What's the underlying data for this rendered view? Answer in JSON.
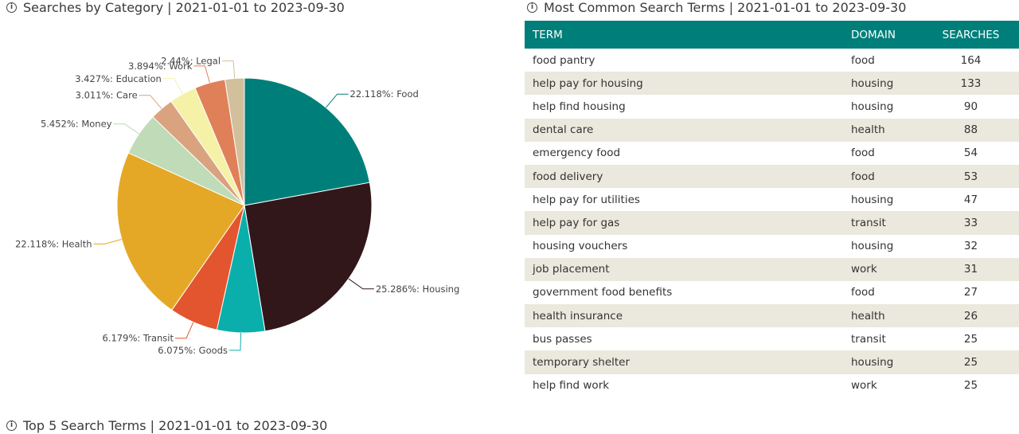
{
  "pie_panel": {
    "title": "Searches by Category | 2021-01-01 to 2023-09-30"
  },
  "table_panel": {
    "title": "Most Common Search Terms | 2021-01-01 to 2023-09-30",
    "columns": [
      "TERM",
      "DOMAIN",
      "SEARCHES"
    ],
    "rows": [
      {
        "term": "food pantry",
        "domain": "food",
        "searches": "164"
      },
      {
        "term": "help pay for housing",
        "domain": "housing",
        "searches": "133"
      },
      {
        "term": "help find housing",
        "domain": "housing",
        "searches": "90"
      },
      {
        "term": "dental care",
        "domain": "health",
        "searches": "88"
      },
      {
        "term": "emergency food",
        "domain": "food",
        "searches": "54"
      },
      {
        "term": "food delivery",
        "domain": "food",
        "searches": "53"
      },
      {
        "term": "help pay for utilities",
        "domain": "housing",
        "searches": "47"
      },
      {
        "term": "help pay for gas",
        "domain": "transit",
        "searches": "33"
      },
      {
        "term": "housing vouchers",
        "domain": "housing",
        "searches": "32"
      },
      {
        "term": "job placement",
        "domain": "work",
        "searches": "31"
      },
      {
        "term": "government food benefits",
        "domain": "food",
        "searches": "27"
      },
      {
        "term": "health insurance",
        "domain": "health",
        "searches": "26"
      },
      {
        "term": "bus passes",
        "domain": "transit",
        "searches": "25"
      },
      {
        "term": "temporary shelter",
        "domain": "housing",
        "searches": "25"
      },
      {
        "term": "help find work",
        "domain": "work",
        "searches": "25"
      }
    ]
  },
  "bottom_panel": {
    "title": "Top 5 Search Terms | 2021-01-01 to 2023-09-30"
  },
  "colors": {
    "header_bg": "#007f7a",
    "alt_row": "#ebe8de"
  },
  "icons": {
    "info": "info-circle-icon"
  },
  "chart_data": {
    "type": "pie",
    "slices": [
      {
        "name": "Food",
        "value": 22.118,
        "label": "22.118%: Food",
        "color": "#007f7a"
      },
      {
        "name": "Housing",
        "value": 25.286,
        "label": "25.286%: Housing",
        "color": "#32171a"
      },
      {
        "name": "Goods",
        "value": 6.075,
        "label": "6.075%: Goods",
        "color": "#0aafab"
      },
      {
        "name": "Transit",
        "value": 6.179,
        "label": "6.179%: Transit",
        "color": "#e3552e"
      },
      {
        "name": "Health",
        "value": 22.118,
        "label": "22.118%: Health",
        "color": "#e5a826"
      },
      {
        "name": "Money",
        "value": 5.452,
        "label": "5.452%: Money",
        "color": "#bfdbb7"
      },
      {
        "name": "Care",
        "value": 3.011,
        "label": "3.011%: Care",
        "color": "#d9a37f"
      },
      {
        "name": "Education",
        "value": 3.427,
        "label": "3.427%: Education",
        "color": "#f5f1a6"
      },
      {
        "name": "Work",
        "value": 3.894,
        "label": "3.894%: Work",
        "color": "#e08058"
      },
      {
        "name": "Legal",
        "value": 2.44,
        "label": "2.44%: Legal",
        "color": "#d2bf9b"
      }
    ]
  }
}
